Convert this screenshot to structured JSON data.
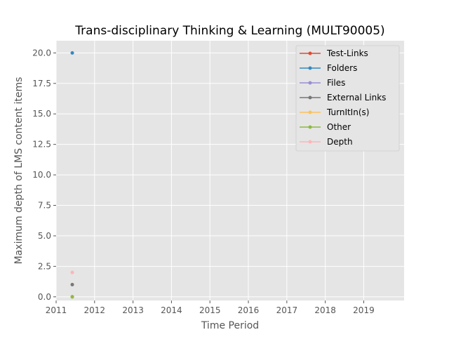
{
  "chart_data": {
    "type": "scatter",
    "title": "Trans-disciplinary Thinking & Learning (MULT90005)",
    "xlabel": "Time Period",
    "ylabel": "Maximum depth of LMS content items",
    "xlim": [
      2011,
      2020.05
    ],
    "ylim": [
      -0.3,
      21.0
    ],
    "x_ticks": [
      "2011",
      "2012",
      "2013",
      "2014",
      "2015",
      "2016",
      "2017",
      "2018",
      "2019"
    ],
    "y_ticks": [
      "0.0",
      "2.5",
      "5.0",
      "7.5",
      "10.0",
      "12.5",
      "15.0",
      "17.5",
      "20.0"
    ],
    "grid": true,
    "legend_position": "top-right",
    "series": [
      {
        "name": "Test-Links",
        "color": "#E24A33",
        "points": [
          [
            2011.42,
            0
          ]
        ]
      },
      {
        "name": "Folders",
        "color": "#348ABD",
        "points": [
          [
            2011.42,
            20
          ]
        ]
      },
      {
        "name": "Files",
        "color": "#988ED5",
        "points": [
          [
            2011.42,
            0
          ]
        ]
      },
      {
        "name": "External Links",
        "color": "#777777",
        "points": [
          [
            2011.42,
            1
          ]
        ]
      },
      {
        "name": "TurnItIn(s)",
        "color": "#FBC15E",
        "points": [
          [
            2011.42,
            0
          ]
        ]
      },
      {
        "name": "Other",
        "color": "#8EBA42",
        "points": [
          [
            2011.42,
            0
          ]
        ]
      },
      {
        "name": "Depth",
        "color": "#FFB5B8",
        "points": [
          [
            2011.42,
            2
          ]
        ]
      }
    ]
  }
}
